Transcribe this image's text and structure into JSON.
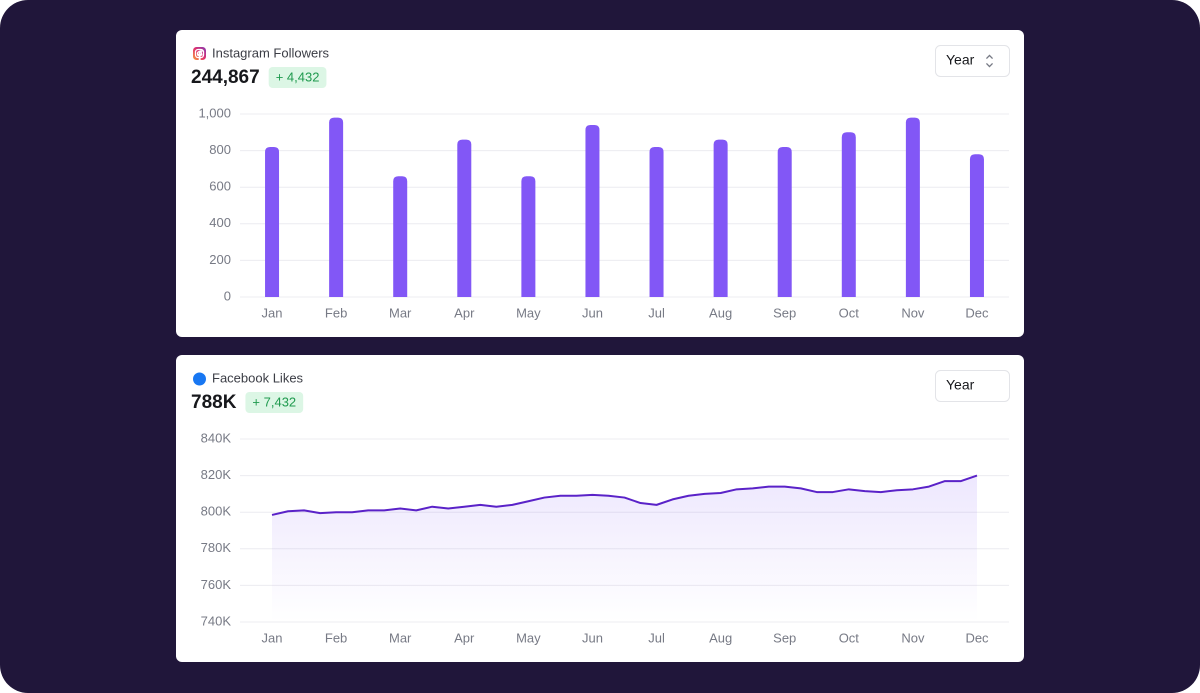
{
  "chart_data": [
    {
      "type": "bar",
      "title": "Instagram Followers",
      "total": "244,867",
      "change": "+ 4,432",
      "control": "Year",
      "categories": [
        "Jan",
        "Feb",
        "Mar",
        "Apr",
        "May",
        "Jun",
        "Jul",
        "Aug",
        "Sep",
        "Oct",
        "Nov",
        "Dec"
      ],
      "values": [
        820,
        980,
        660,
        860,
        660,
        940,
        820,
        860,
        820,
        900,
        980,
        780
      ],
      "color": "#8257f6",
      "ylim": [
        0,
        1000
      ],
      "yticks": [
        0,
        200,
        400,
        600,
        800,
        {
          "value": 1000,
          "label": "1,000"
        }
      ],
      "grid": true
    },
    {
      "type": "line",
      "title": "Facebook Likes",
      "total": "788K",
      "change": "+ 7,432",
      "control": "Year",
      "categories": [
        "Jan",
        null,
        null,
        null,
        "Feb",
        null,
        null,
        null,
        "Mar",
        null,
        null,
        null,
        "Apr",
        null,
        null,
        null,
        "May",
        null,
        null,
        null,
        "Jun",
        null,
        null,
        null,
        "Jul",
        null,
        null,
        null,
        "Aug",
        null,
        null,
        null,
        "Sep",
        null,
        null,
        null,
        "Oct",
        null,
        null,
        null,
        "Nov",
        null,
        null,
        null,
        "Dec"
      ],
      "values": [
        798.5,
        800.5,
        801,
        799.5,
        800,
        800,
        801,
        801,
        802,
        801,
        803,
        802,
        803,
        804,
        803,
        804,
        806,
        808,
        809,
        809,
        809.5,
        809,
        808,
        805,
        804,
        807,
        809,
        810,
        810.5,
        812.5,
        813,
        814,
        814,
        813,
        811,
        811,
        812.5,
        811.5,
        811,
        812,
        812.5,
        814,
        817,
        817,
        820
      ],
      "color": "#5a22c8",
      "ylim": [
        740,
        840
      ],
      "yticks": [
        {
          "value": 740,
          "label": "740K"
        },
        {
          "value": 760,
          "label": "760K"
        },
        {
          "value": 780,
          "label": "780K"
        },
        {
          "value": 800,
          "label": "800K"
        },
        {
          "value": 820,
          "label": "820K"
        },
        {
          "value": 840,
          "label": "840K"
        }
      ],
      "grid": true
    }
  ]
}
